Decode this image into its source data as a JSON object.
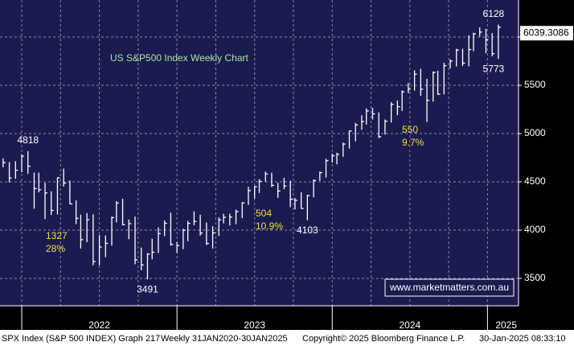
{
  "chart_data": {
    "type": "ohlc",
    "title": "US S&P500 Index Weekly Chart",
    "x": [
      2021.88,
      2021.92,
      2021.96,
      2022.0,
      2022.04,
      2022.08,
      2022.11,
      2022.15,
      2022.19,
      2022.23,
      2022.27,
      2022.31,
      2022.35,
      2022.38,
      2022.42,
      2022.46,
      2022.5,
      2022.54,
      2022.58,
      2022.61,
      2022.65,
      2022.69,
      2022.73,
      2022.77,
      2022.81,
      2022.84,
      2022.88,
      2022.92,
      2022.96,
      2023.0,
      2023.04,
      2023.07,
      2023.11,
      2023.15,
      2023.19,
      2023.23,
      2023.27,
      2023.3,
      2023.34,
      2023.38,
      2023.42,
      2023.46,
      2023.5,
      2023.53,
      2023.57,
      2023.61,
      2023.65,
      2023.69,
      2023.73,
      2023.76,
      2023.8,
      2023.84,
      2023.88,
      2023.92,
      2023.96,
      2024.0,
      2024.03,
      2024.07,
      2024.11,
      2024.15,
      2024.19,
      2024.22,
      2024.26,
      2024.3,
      2024.34,
      2024.38,
      2024.42,
      2024.45,
      2024.49,
      2024.53,
      2024.57,
      2024.61,
      2024.65,
      2024.68,
      2024.72,
      2024.76,
      2024.8,
      2024.84,
      2024.88,
      2024.91,
      2024.95,
      2024.99,
      2025.03,
      2025.07
    ],
    "high": [
      4743,
      4705,
      4713,
      4786,
      4818,
      4595,
      4595,
      4490,
      4402,
      4546,
      4637,
      4513,
      4308,
      4160,
      4177,
      4164,
      3950,
      3945,
      4140,
      4300,
      4325,
      4110,
      4140,
      3820,
      3762,
      3911,
      4028,
      4100,
      4180,
      3876,
      4015,
      4095,
      4195,
      4160,
      4078,
      4040,
      4133,
      4170,
      4170,
      4213,
      4290,
      4448,
      4456,
      4528,
      4607,
      4595,
      4490,
      4541,
      4511,
      4333,
      4393,
      4366,
      4525,
      4607,
      4739,
      4793,
      4802,
      4907,
      5030,
      5111,
      5189,
      5261,
      5265,
      5220,
      5146,
      5325,
      5342,
      5447,
      5523,
      5655,
      5670,
      5566,
      5643,
      5651,
      5733,
      5768,
      5878,
      5878,
      6017,
      6044,
      6099,
      6085,
      6040,
      6128
    ],
    "low": [
      4650,
      4495,
      4531,
      4600,
      4582,
      4222,
      4392,
      4115,
      4157,
      4162,
      4450,
      4270,
      4062,
      3810,
      3875,
      3637,
      3637,
      3721,
      3840,
      4080,
      4050,
      3906,
      3647,
      3584,
      3491,
      3698,
      3764,
      3938,
      3838,
      3764,
      3802,
      3885,
      4050,
      3943,
      3847,
      3809,
      3939,
      4070,
      4049,
      4062,
      4126,
      4260,
      4328,
      4385,
      4502,
      4446,
      4335,
      4424,
      4238,
      4216,
      4223,
      4103,
      4340,
      4510,
      4546,
      4700,
      4682,
      4760,
      4845,
      4920,
      5039,
      5092,
      5146,
      4953,
      4990,
      5114,
      5191,
      5234,
      5420,
      5445,
      5390,
      5120,
      5330,
      5402,
      5406,
      5674,
      5696,
      5700,
      5696,
      5853,
      6005,
      5832,
      5800,
      5773
    ],
    "close": [
      4700,
      4540,
      4620,
      4766,
      4662,
      4431,
      4418,
      4385,
      4204,
      4543,
      4488,
      4272,
      4123,
      3901,
      4108,
      3675,
      3825,
      3863,
      4130,
      4280,
      4057,
      4067,
      3693,
      3640,
      3752,
      3771,
      3965,
      4071,
      3852,
      3840,
      3999,
      4070,
      4090,
      3970,
      3862,
      3971,
      4105,
      4133,
      4136,
      4191,
      4282,
      4409,
      4450,
      4505,
      4582,
      4464,
      4405,
      4457,
      4320,
      4308,
      4224,
      4358,
      4514,
      4595,
      4719,
      4770,
      4784,
      4891,
      5027,
      5089,
      5124,
      5234,
      5204,
      4967,
      5128,
      5303,
      5278,
      5432,
      5460,
      5615,
      5459,
      5344,
      5634,
      5408,
      5702,
      5751,
      5864,
      5729,
      5870,
      6032,
      6051,
      5970,
      5827,
      6101
    ],
    "color": "#ffffff",
    "xlim": [
      2021.86,
      2025.2
    ],
    "xticks": [
      2022,
      2023,
      2024,
      2025
    ],
    "ylim": [
      3217,
      6383
    ],
    "yticks": [
      3500,
      4000,
      4500,
      5000,
      5500,
      6000
    ],
    "grid": true,
    "last_price": 6039.3086,
    "annotations": [
      {
        "lines": [
          "1327",
          "28%"
        ]
      },
      {
        "lines": [
          "504",
          "10.9%"
        ]
      },
      {
        "lines": [
          "550",
          "9.7%"
        ]
      }
    ],
    "website": "www.marketmatters.com.au",
    "footer": [
      "SPX Index (S&P 500 INDEX) Graph 217",
      "Weekly 31JAN2020-30JAN2025",
      "Copyright© 2025 Bloomberg Finance L.P.",
      "30-Jan-2025 08:33:10"
    ]
  }
}
